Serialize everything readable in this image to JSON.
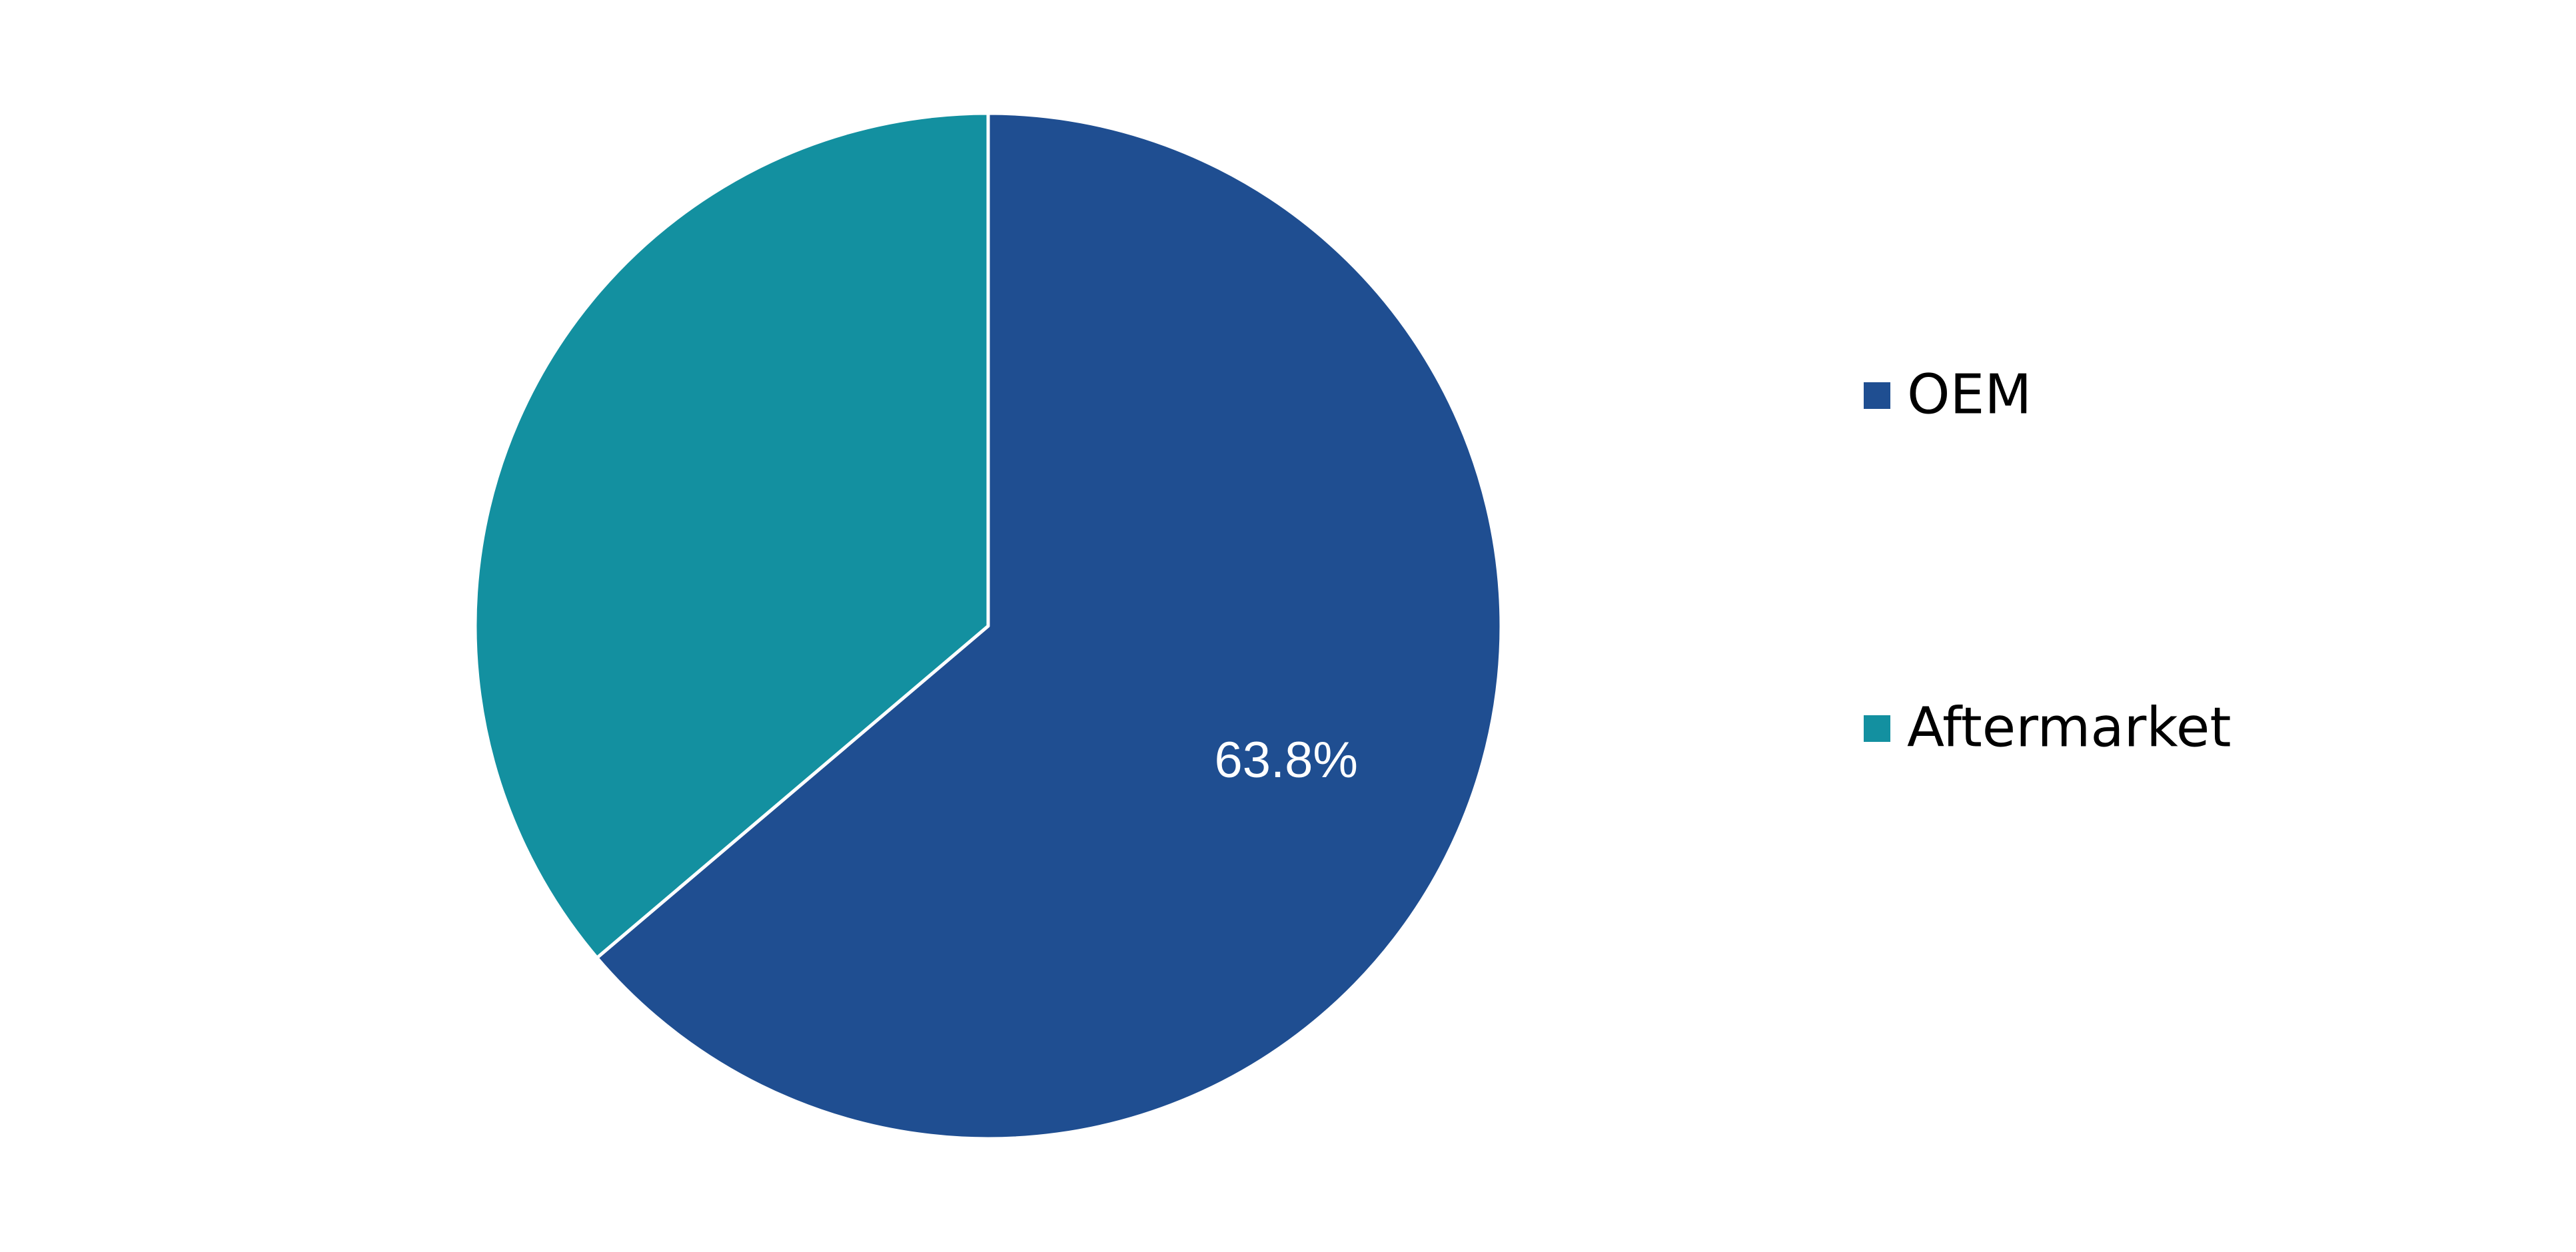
{
  "chart_data": {
    "type": "pie",
    "categories": [
      "OEM",
      "Aftermarket"
    ],
    "values": [
      63.8,
      36.2
    ],
    "value_labels": [
      "63.8%",
      null
    ],
    "colors": [
      "#1f4e91",
      "#1390a0"
    ],
    "legend": "right"
  }
}
